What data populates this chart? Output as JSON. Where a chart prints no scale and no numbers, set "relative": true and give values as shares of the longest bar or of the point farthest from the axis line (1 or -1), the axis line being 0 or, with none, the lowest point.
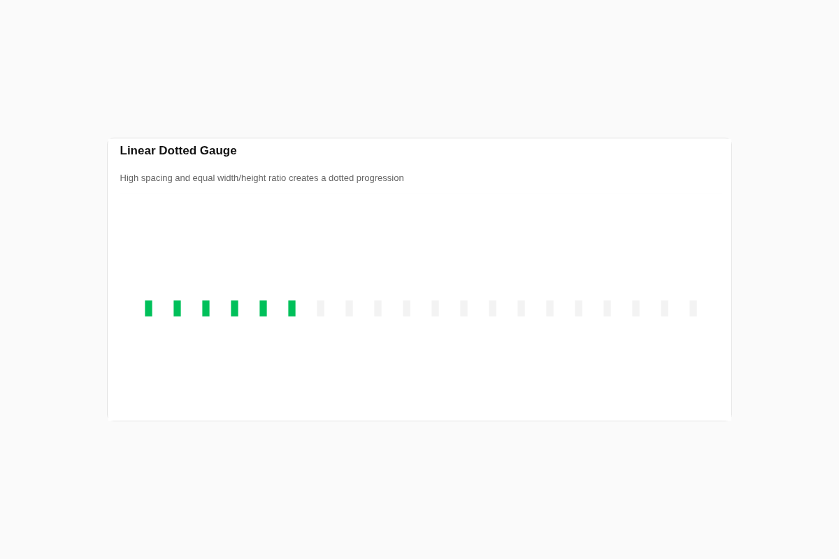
{
  "chart_data": {
    "type": "bar",
    "title": "Linear Dotted Gauge",
    "subtitle": "High spacing and equal width/height ratio creates a dotted progression",
    "relative": true,
    "categories": [
      null,
      null,
      null,
      null,
      null,
      null,
      null,
      null,
      null,
      null,
      null,
      null,
      null,
      null,
      null,
      null,
      null,
      null,
      null,
      null
    ],
    "values": [
      1,
      1,
      1,
      1,
      1,
      1,
      1,
      1,
      1,
      1,
      1,
      1,
      1,
      1,
      1,
      1,
      1,
      1,
      1,
      1
    ],
    "colors": [
      "#00c05a",
      "#00c05a",
      "#00c05a",
      "#00c05a",
      "#00c05a",
      "#00c05a",
      "#f3f3f3",
      "#f3f3f3",
      "#f3f3f3",
      "#f3f3f3",
      "#f3f3f3",
      "#f3f3f3",
      "#f3f3f3",
      "#f3f3f3",
      "#f3f3f3",
      "#f3f3f3",
      "#f3f3f3",
      "#f3f3f3",
      "#f3f3f3",
      "#f3f3f3"
    ]
  }
}
